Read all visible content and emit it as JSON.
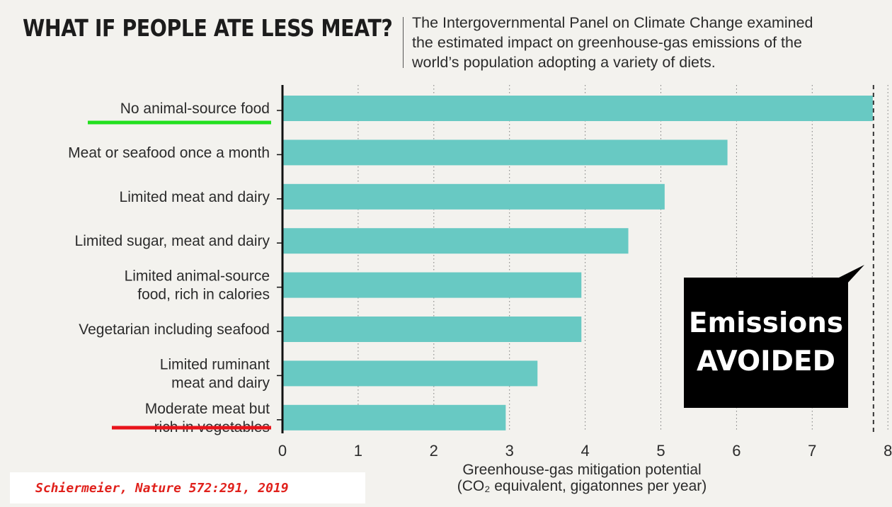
{
  "header": {
    "title": "WHAT IF PEOPLE ATE LESS MEAT?",
    "subtitle_lines": [
      "The Intergovernmental Panel on Climate Change examined",
      "the estimated impact on greenhouse-gas emissions of the",
      "world’s population adopting a variety of diets."
    ]
  },
  "chart_data": {
    "type": "bar",
    "orientation": "horizontal",
    "categories": [
      [
        "No animal-source food"
      ],
      [
        "Meat or seafood once a month"
      ],
      [
        "Limited meat and dairy"
      ],
      [
        "Limited sugar, meat and dairy"
      ],
      [
        "Limited animal-source",
        "food, rich in calories"
      ],
      [
        "Vegetarian including seafood"
      ],
      [
        "Limited ruminant",
        "meat and dairy"
      ],
      [
        "Moderate meat but",
        "rich in vegetables"
      ]
    ],
    "values": [
      7.8,
      5.88,
      5.05,
      4.57,
      3.95,
      3.95,
      3.37,
      2.95
    ],
    "xlim": [
      0,
      8
    ],
    "xticks": [
      "0",
      "1",
      "2",
      "3",
      "4",
      "5",
      "6",
      "7",
      "8"
    ],
    "xlabel_lines": [
      "Greenhouse-gas mitigation potential",
      "(CO₂ equivalent, gigatonnes per year)"
    ],
    "grid": "vertical dotted",
    "reference_line": {
      "value": 7.8,
      "style": "dashed"
    },
    "highlights": {
      "top_category_underline": "#22e01e",
      "bottom_category_underline": "#e8141b"
    },
    "bar_color": "#68c9c3"
  },
  "callout": {
    "line1": "Emissions",
    "line2": "AVOIDED"
  },
  "citation": "Schiermeier, Nature 572:291, 2019"
}
